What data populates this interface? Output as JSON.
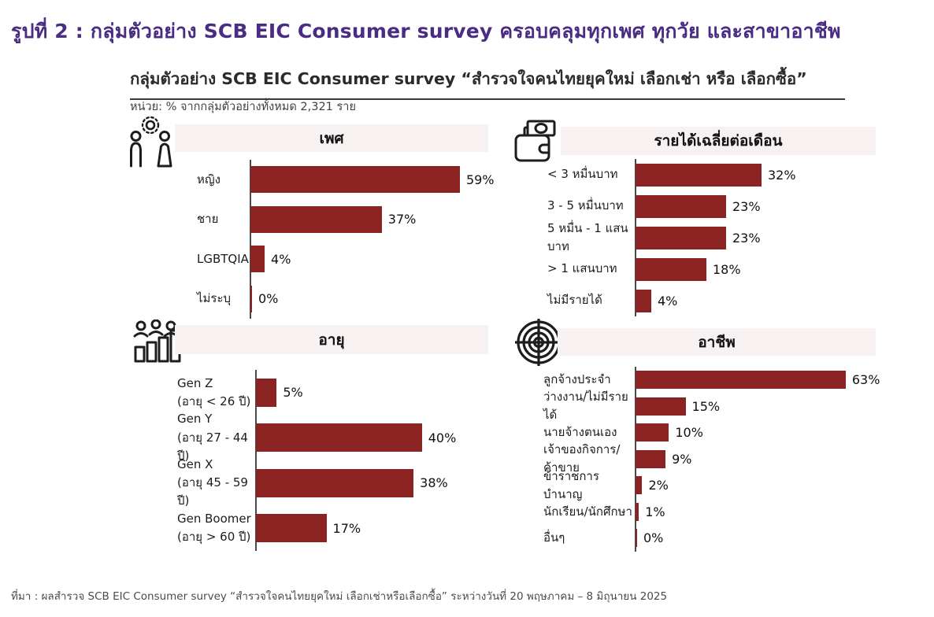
{
  "page": {
    "title": "รูปที่ 2 : กลุ่มตัวอย่าง SCB EIC Consumer survey ครอบคลุมทุกเพศ ทุกวัย และสาขาอาชีพ",
    "subtitle": "กลุ่มตัวอย่าง SCB EIC Consumer survey “สำรวจใจคนไทยยุคใหม่ เลือกเช่า หรือ เลือกซื้อ”",
    "unit_note": "หน่วย: % จากกลุ่มตัวอย่างทั้งหมด 2,321 ราย",
    "source_note": "ที่มา : ผลสำรวจ SCB EIC Consumer survey “สำรวจใจคนไทยยุคใหม่ เลือกเช่าหรือเลือกซื้อ” ระหว่างวันที่ 20 พฤษภาคม – 8 มิถุนายน 2025"
  },
  "colors": {
    "title_purple": "#4A2C85",
    "bar_red": "#8B2322",
    "band_bg": "#F7F1F1",
    "axis_gray": "#4A4A4A"
  },
  "chart_data": [
    {
      "id": "gender",
      "type": "bar",
      "orientation": "horizontal",
      "title": "เพศ",
      "icon": "gender-icon",
      "unit": "%",
      "categories": [
        "หญิง",
        "ชาย",
        "LGBTQIA+",
        "ไม่ระบุ"
      ],
      "values": [
        59,
        37,
        4,
        0
      ],
      "labels": [
        "59%",
        "37%",
        "4%",
        "0%"
      ],
      "xlim": [
        0,
        67
      ],
      "grid": false,
      "legend": "none"
    },
    {
      "id": "income",
      "type": "bar",
      "orientation": "horizontal",
      "title": "รายได้เฉลี่ยต่อเดือน",
      "icon": "wallet-icon",
      "unit": "%",
      "categories": [
        "< 3 หมื่นบาท",
        "3 - 5 หมื่นบาท",
        "5 หมื่น - 1 แสนบาท",
        "> 1 แสนบาท",
        "ไม่มีรายได้"
      ],
      "values": [
        32,
        23,
        23,
        18,
        4
      ],
      "labels": [
        "32%",
        "23%",
        "23%",
        "18%",
        "4%"
      ],
      "xlim": [
        0,
        61
      ],
      "grid": false,
      "legend": "none"
    },
    {
      "id": "age",
      "type": "bar",
      "orientation": "horizontal",
      "title": "อายุ",
      "icon": "people-chart-icon",
      "unit": "%",
      "categories": [
        "Gen Z\n(อายุ < 26 ปี)",
        "Gen Y\n(อายุ 27 - 44 ปี)",
        "Gen X\n(อายุ 45 - 59 ปี)",
        "Gen Boomer\n(อายุ > 60 ปี)"
      ],
      "values": [
        5,
        40,
        38,
        17
      ],
      "labels": [
        "5%",
        "40%",
        "38%",
        "17%"
      ],
      "xlim": [
        0,
        56
      ],
      "grid": false,
      "legend": "none"
    },
    {
      "id": "occupation",
      "type": "bar",
      "orientation": "horizontal",
      "title": "อาชีพ",
      "icon": "target-icon",
      "unit": "%",
      "categories": [
        "ลูกจ้างประจำ",
        "ว่างงาน/ไม่มีรายได้",
        "นายจ้างตนเอง",
        "เจ้าของกิจการ/ค้าขาย",
        "ข้าราชการบำนาญ",
        "นักเรียน/นักศึกษา",
        "อื่นๆ"
      ],
      "values": [
        63,
        15,
        10,
        9,
        2,
        1,
        0
      ],
      "labels": [
        "63%",
        "15%",
        "10%",
        "9%",
        "2%",
        "1%",
        "0%"
      ],
      "xlim": [
        0,
        72
      ],
      "grid": false,
      "legend": "none"
    }
  ]
}
